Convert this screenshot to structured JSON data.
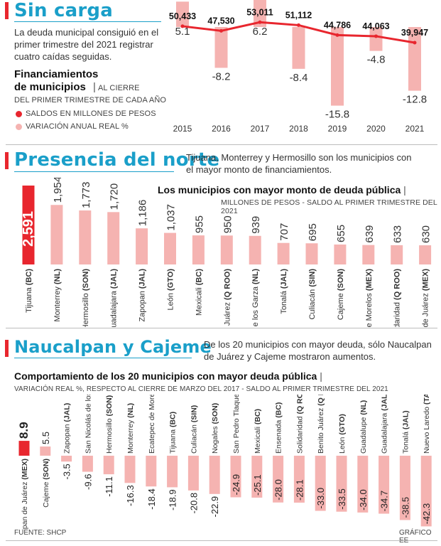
{
  "section1": {
    "title": "Sin carga",
    "intro": "La deuda municipal consiguió en el primer trimestre del 2021 registrar cuatro caídas seguidas.",
    "chart_title_line1": "Financiamientos",
    "chart_title_line2": "de municipios",
    "chart_subtitle_a": "AL CIERRE",
    "chart_subtitle_b": "DEL PRIMER TRIMESTRE DE CADA AÑO",
    "legend_line": "SALDOS EN MILLONES DE PESOS",
    "legend_bar": "VARIACIÓN ANUAL REAL %"
  },
  "section2": {
    "title": "Presencia del norte",
    "intro": "Tijuana, Monterrey y Hermosillo son los municipios con el mayor monto de financiamientos.",
    "chart_title": "Los municipios con mayor monto de deuda pública",
    "chart_subtitle": "MILLONES DE PESOS - SALDO AL PRIMER TRIMESTRE DEL 2021"
  },
  "section3": {
    "title": "Naucalpan y Cajeme",
    "intro": "De los 20 municipios con mayor deuda, sólo Naucalpan de Juárez y Cajeme mostraron aumentos.",
    "chart_title": "Comportamiento de los 20 municipios con mayor deuda pública",
    "chart_subtitle": "VARIACIÓN REAL %, RESPECTO AL CIERRE DE MARZO DEL 2017 - SALDO AL PRIMER TRIMESTRE DEL 2021"
  },
  "footer": {
    "source": "FUENTE: SHCP",
    "credit": "GRÁFICO EE"
  },
  "colors": {
    "accent": "#1a9fc9",
    "red": "#e8262e",
    "pink": "#f5b3b1"
  },
  "chart_data": [
    {
      "type": "bar",
      "categories": [
        "2015",
        "2016",
        "2017",
        "2018",
        "2019",
        "2020",
        "2021"
      ],
      "series": [
        {
          "name": "SALDOS EN MILLONES DE PESOS",
          "type": "line",
          "values": [
            50433,
            47530,
            53011,
            51112,
            44786,
            44063,
            39947
          ],
          "labels": [
            "50,433",
            "47,530",
            "53,011",
            "51,112",
            "44,786",
            "44,063",
            "39,947"
          ]
        },
        {
          "name": "VARIACIÓN ANUAL REAL %",
          "type": "bar",
          "values": [
            5.1,
            -8.2,
            6.2,
            -8.4,
            -15.8,
            -4.8,
            -12.8
          ],
          "labels": [
            "5.1",
            "-8.2",
            "6.2",
            "-8.4",
            "-15.8",
            "-4.8",
            "-12.8"
          ]
        }
      ]
    },
    {
      "type": "bar",
      "categories": [
        {
          "name": "Tijuana",
          "state": "BC"
        },
        {
          "name": "Monterrey",
          "state": "NL"
        },
        {
          "name": "Hermosillo",
          "state": "SON"
        },
        {
          "name": "Guadalajara",
          "state": "JAL"
        },
        {
          "name": "Zapopan",
          "state": "JAL"
        },
        {
          "name": "León",
          "state": "GTO"
        },
        {
          "name": "Mexicali",
          "state": "BC"
        },
        {
          "name": "Benito Juárez",
          "state": "Q ROO"
        },
        {
          "name": "San Nicolás de los Garza",
          "state": "NL"
        },
        {
          "name": "Tonalá",
          "state": "JAL"
        },
        {
          "name": "Culiacán",
          "state": "SIN"
        },
        {
          "name": "Cajeme",
          "state": "SON"
        },
        {
          "name": "Ecatepec de Morelos",
          "state": "MEX"
        },
        {
          "name": "Solidaridad",
          "state": "Q ROO"
        },
        {
          "name": "Naucalpan de Juárez",
          "state": "MEX"
        }
      ],
      "values": [
        2591,
        1954,
        1773,
        1720,
        1186,
        1037,
        955,
        950,
        939,
        707,
        695,
        655,
        639,
        633,
        630
      ],
      "labels": [
        "2,591",
        "1,954",
        "1,773",
        "1,720",
        "1,186",
        "1,037",
        "955",
        "950",
        "939",
        "707",
        "695",
        "655",
        "639",
        "633",
        "630"
      ]
    },
    {
      "type": "bar",
      "categories": [
        {
          "name": "Naucalpan de Juárez",
          "state": "MEX"
        },
        {
          "name": "Cajeme",
          "state": "SON"
        },
        {
          "name": "Zapopan",
          "state": "JAL"
        },
        {
          "name": "San Nicolás de los Garza",
          "state": "NL"
        },
        {
          "name": "Hermosillo",
          "state": "SON"
        },
        {
          "name": "Monterrey",
          "state": "NL"
        },
        {
          "name": "Ecatepec de Morelos",
          "state": "MEX"
        },
        {
          "name": "Tijuana",
          "state": "BC"
        },
        {
          "name": "Culiacán",
          "state": "SIN"
        },
        {
          "name": "Nogales",
          "state": "SON"
        },
        {
          "name": "San Pedro Tlaquepaque",
          "state": "JAL"
        },
        {
          "name": "Mexicali",
          "state": "BC"
        },
        {
          "name": "Ensenada",
          "state": "BC"
        },
        {
          "name": "Solidaridad",
          "state": "Q ROO"
        },
        {
          "name": "Benito Juárez",
          "state": "Q ROO"
        },
        {
          "name": "León",
          "state": "GTO"
        },
        {
          "name": "Guadalupe",
          "state": "NL"
        },
        {
          "name": "Guadalajara",
          "state": "JAL"
        },
        {
          "name": "Tonalá",
          "state": "JAL"
        },
        {
          "name": "Nuevo Laredo",
          "state": "TAMPS"
        }
      ],
      "values": [
        8.9,
        5.5,
        -3.5,
        -9.6,
        -11.1,
        -16.3,
        -18.4,
        -18.9,
        -20.8,
        -22.9,
        -24.9,
        -25.1,
        -28.0,
        -28.1,
        -33.0,
        -33.5,
        -34.0,
        -34.7,
        -38.5,
        -42.3
      ],
      "labels": [
        "8.9",
        "5.5",
        "-3.5",
        "-9.6",
        "-11.1",
        "-16.3",
        "-18.4",
        "-18.9",
        "-20.8",
        "-22.9",
        "-24.9",
        "-25.1",
        "-28.0",
        "-28.1",
        "-33.0",
        "-33.5",
        "-34.0",
        "-34.7",
        "-38.5",
        "-42.3"
      ]
    }
  ]
}
